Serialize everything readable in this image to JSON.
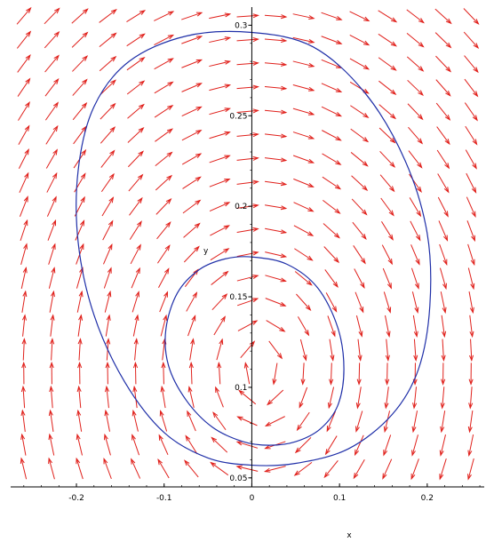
{
  "chart_data": {
    "type": "vector_field",
    "title": "",
    "xlabel": "x",
    "ylabel": "y",
    "xlim": [
      -0.275,
      0.265
    ],
    "ylim": [
      0.045,
      0.31
    ],
    "x_ticks": [
      -0.2,
      -0.1,
      0,
      0.1,
      0.2
    ],
    "x_tick_labels": [
      "-0.2",
      "-0.1",
      "0",
      "0.1",
      "0.2"
    ],
    "y_ticks": [
      0.05,
      0.1,
      0.15,
      0.2,
      0.25,
      0.3
    ],
    "y_tick_labels": [
      "0.05",
      "0.1",
      "0.15",
      "0.2",
      "0.25",
      "0.3"
    ],
    "grid": false,
    "legend": "none",
    "field": {
      "description": "direction field circulating clockwise about a center near (0.01, 0.11)",
      "center": [
        0.01,
        0.11
      ],
      "x_range": [
        -0.26,
        0.25
      ],
      "y_range": [
        0.055,
        0.305
      ],
      "columns": 17,
      "rows": 20,
      "arrow_color": "#e0201b"
    },
    "series": [
      {
        "type": "closed_curve",
        "color": "#1f2fa8",
        "points": [
          [
            0.0,
            0.296
          ],
          [
            0.07,
            0.288
          ],
          [
            0.13,
            0.262
          ],
          [
            0.175,
            0.225
          ],
          [
            0.2,
            0.185
          ],
          [
            0.203,
            0.145
          ],
          [
            0.19,
            0.11
          ],
          [
            0.16,
            0.085
          ],
          [
            0.11,
            0.066
          ],
          [
            0.05,
            0.058
          ],
          [
            0.0,
            0.057
          ],
          [
            -0.05,
            0.061
          ],
          [
            -0.1,
            0.075
          ],
          [
            -0.145,
            0.103
          ],
          [
            -0.18,
            0.14
          ],
          [
            -0.198,
            0.18
          ],
          [
            -0.198,
            0.22
          ],
          [
            -0.18,
            0.255
          ],
          [
            -0.14,
            0.28
          ],
          [
            -0.075,
            0.294
          ]
        ]
      },
      {
        "type": "closed_curve",
        "color": "#1f2fa8",
        "points": [
          [
            0.0,
            0.172
          ],
          [
            0.04,
            0.168
          ],
          [
            0.075,
            0.155
          ],
          [
            0.098,
            0.133
          ],
          [
            0.105,
            0.11
          ],
          [
            0.098,
            0.09
          ],
          [
            0.078,
            0.077
          ],
          [
            0.05,
            0.07
          ],
          [
            0.02,
            0.068
          ],
          [
            -0.01,
            0.07
          ],
          [
            -0.045,
            0.078
          ],
          [
            -0.075,
            0.093
          ],
          [
            -0.095,
            0.112
          ],
          [
            -0.098,
            0.132
          ],
          [
            -0.085,
            0.152
          ],
          [
            -0.06,
            0.165
          ],
          [
            -0.03,
            0.171
          ]
        ]
      }
    ]
  }
}
